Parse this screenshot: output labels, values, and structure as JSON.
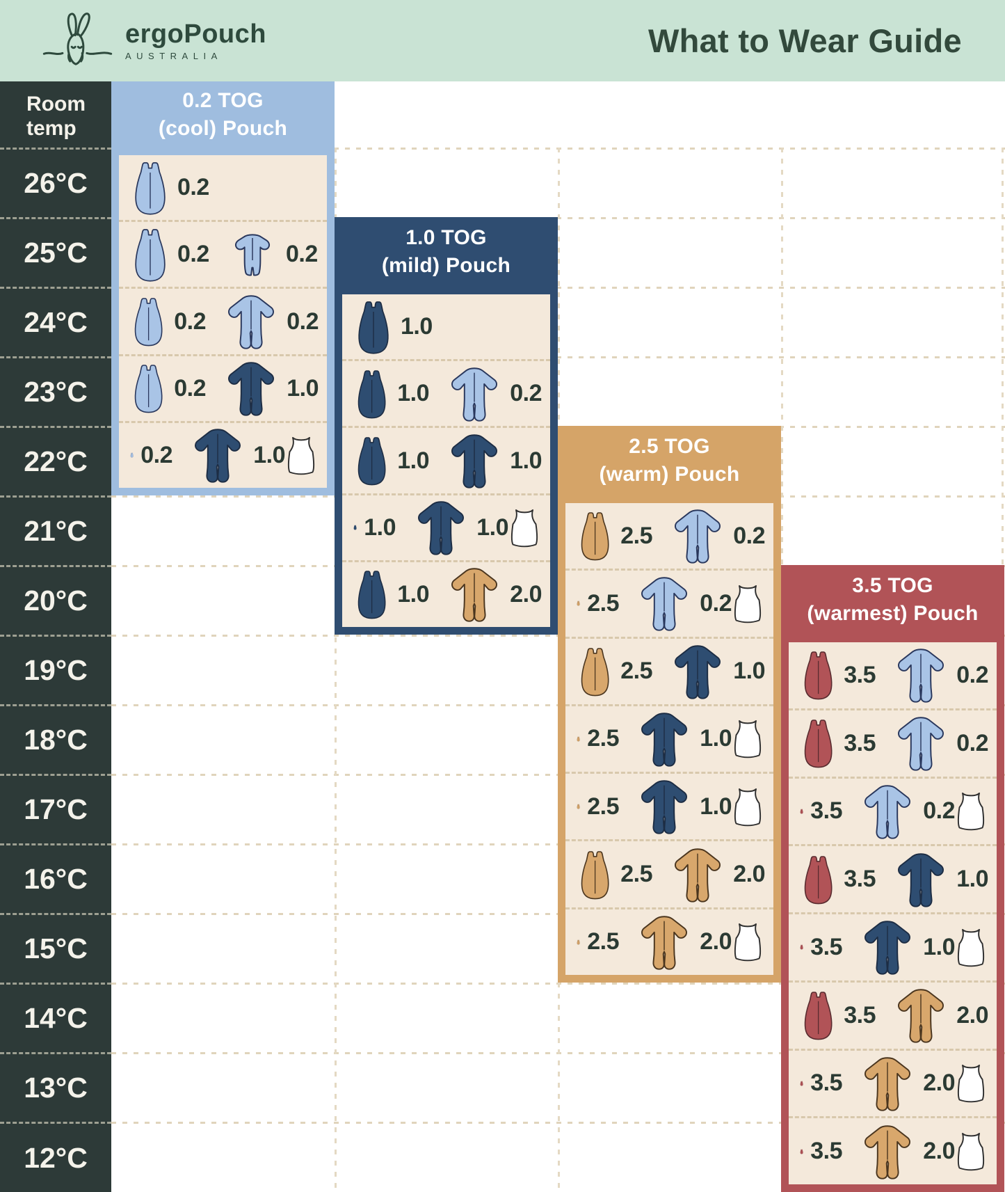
{
  "header": {
    "brand": "ergoPouch",
    "brand_sub": "AUSTRALIA",
    "title": "What to Wear Guide"
  },
  "temp_column": {
    "header": "Room\ntemp",
    "temps": [
      "26°C",
      "25°C",
      "24°C",
      "23°C",
      "22°C",
      "21°C",
      "20°C",
      "19°C",
      "18°C",
      "17°C",
      "16°C",
      "15°C",
      "14°C",
      "13°C",
      "12°C"
    ]
  },
  "colors": {
    "mint": "#c9e3d4",
    "dark_green": "#2e4a3d",
    "title_green": "#32493c",
    "slate": "#2d3a38",
    "cream": "#f4e9db",
    "label": "#2b3a33",
    "light_blue": "#9fbddf",
    "navy": "#2f4d71",
    "tan": "#d5a468",
    "red": "#b15357",
    "icon_light_blue": "#a9c4e6",
    "icon_navy": "#2e4d71",
    "icon_tan": "#d8a76c",
    "icon_red": "#b15357",
    "singlet_white": "#ffffff",
    "dash_cream": "#d8c8ac"
  },
  "columns": [
    {
      "id": "cool",
      "title": "0.2 TOG\n(cool) Pouch",
      "accent_key": "light_blue",
      "start_temp": "26°C",
      "rows": [
        {
          "temp": "26°C",
          "pouch": {
            "color": "light_blue",
            "label": "0.2"
          },
          "garments": [],
          "singlet": false
        },
        {
          "temp": "25°C",
          "pouch": {
            "color": "light_blue",
            "label": "0.2"
          },
          "garments": [
            {
              "icon": "romper",
              "color": "light_blue",
              "label": "0.2"
            }
          ],
          "singlet": false
        },
        {
          "temp": "24°C",
          "pouch": {
            "color": "light_blue",
            "label": "0.2"
          },
          "garments": [
            {
              "icon": "onesie",
              "color": "light_blue",
              "label": "0.2"
            }
          ],
          "singlet": false
        },
        {
          "temp": "23°C",
          "pouch": {
            "color": "light_blue",
            "label": "0.2"
          },
          "garments": [
            {
              "icon": "onesie",
              "color": "navy",
              "label": "1.0"
            }
          ],
          "singlet": false
        },
        {
          "temp": "22°C",
          "pouch": {
            "color": "light_blue",
            "label": "0.2"
          },
          "garments": [
            {
              "icon": "onesie",
              "color": "navy",
              "label": "1.0"
            }
          ],
          "singlet": true
        }
      ]
    },
    {
      "id": "mild",
      "title": "1.0 TOG\n(mild) Pouch",
      "accent_key": "navy",
      "start_temp": "24°C",
      "rows": [
        {
          "temp": "24°C",
          "pouch": {
            "color": "navy",
            "label": "1.0"
          },
          "garments": [],
          "singlet": false
        },
        {
          "temp": "23°C",
          "pouch": {
            "color": "navy",
            "label": "1.0"
          },
          "garments": [
            {
              "icon": "onesie",
              "color": "light_blue",
              "label": "0.2"
            }
          ],
          "singlet": false
        },
        {
          "temp": "22°C",
          "pouch": {
            "color": "navy",
            "label": "1.0"
          },
          "garments": [
            {
              "icon": "onesie",
              "color": "navy",
              "label": "1.0"
            }
          ],
          "singlet": false
        },
        {
          "temp": "21°C",
          "pouch": {
            "color": "navy",
            "label": "1.0"
          },
          "garments": [
            {
              "icon": "onesie",
              "color": "navy",
              "label": "1.0"
            }
          ],
          "singlet": true
        },
        {
          "temp": "20°C",
          "pouch": {
            "color": "navy",
            "label": "1.0"
          },
          "garments": [
            {
              "icon": "onesie",
              "color": "tan",
              "label": "2.0"
            }
          ],
          "singlet": false
        }
      ]
    },
    {
      "id": "warm",
      "title": "2.5 TOG\n(warm) Pouch",
      "accent_key": "tan",
      "start_temp": "21°C",
      "rows": [
        {
          "temp": "21°C",
          "pouch": {
            "color": "tan",
            "label": "2.5"
          },
          "garments": [
            {
              "icon": "onesie",
              "color": "light_blue",
              "label": "0.2"
            }
          ],
          "singlet": false
        },
        {
          "temp": "20°C",
          "pouch": {
            "color": "tan",
            "label": "2.5"
          },
          "garments": [
            {
              "icon": "onesie",
              "color": "light_blue",
              "label": "0.2"
            }
          ],
          "singlet": true
        },
        {
          "temp": "19°C",
          "pouch": {
            "color": "tan",
            "label": "2.5"
          },
          "garments": [
            {
              "icon": "onesie",
              "color": "navy",
              "label": "1.0"
            }
          ],
          "singlet": false
        },
        {
          "temp": "18°C",
          "pouch": {
            "color": "tan",
            "label": "2.5"
          },
          "garments": [
            {
              "icon": "onesie",
              "color": "navy",
              "label": "1.0"
            }
          ],
          "singlet": true
        },
        {
          "temp": "17°C",
          "pouch": {
            "color": "tan",
            "label": "2.5"
          },
          "garments": [
            {
              "icon": "onesie",
              "color": "navy",
              "label": "1.0"
            }
          ],
          "singlet": true
        },
        {
          "temp": "16°C",
          "pouch": {
            "color": "tan",
            "label": "2.5"
          },
          "garments": [
            {
              "icon": "onesie",
              "color": "tan",
              "label": "2.0"
            }
          ],
          "singlet": false
        },
        {
          "temp": "15°C",
          "pouch": {
            "color": "tan",
            "label": "2.5"
          },
          "garments": [
            {
              "icon": "onesie",
              "color": "tan",
              "label": "2.0"
            }
          ],
          "singlet": true
        }
      ]
    },
    {
      "id": "warmest",
      "title": "3.5 TOG\n(warmest) Pouch",
      "accent_key": "red",
      "start_temp": "19°C",
      "rows": [
        {
          "temp": "19°C",
          "pouch": {
            "color": "red",
            "label": "3.5"
          },
          "garments": [
            {
              "icon": "onesie",
              "color": "light_blue",
              "label": "0.2"
            }
          ],
          "singlet": false
        },
        {
          "temp": "18°C",
          "pouch": {
            "color": "red",
            "label": "3.5"
          },
          "garments": [
            {
              "icon": "onesie",
              "color": "light_blue",
              "label": "0.2"
            }
          ],
          "singlet": false
        },
        {
          "temp": "17°C",
          "pouch": {
            "color": "red",
            "label": "3.5"
          },
          "garments": [
            {
              "icon": "onesie",
              "color": "light_blue",
              "label": "0.2"
            }
          ],
          "singlet": true
        },
        {
          "temp": "16°C",
          "pouch": {
            "color": "red",
            "label": "3.5"
          },
          "garments": [
            {
              "icon": "onesie",
              "color": "navy",
              "label": "1.0"
            }
          ],
          "singlet": false
        },
        {
          "temp": "15°C",
          "pouch": {
            "color": "red",
            "label": "3.5"
          },
          "garments": [
            {
              "icon": "onesie",
              "color": "navy",
              "label": "1.0"
            }
          ],
          "singlet": true
        },
        {
          "temp": "14°C",
          "pouch": {
            "color": "red",
            "label": "3.5"
          },
          "garments": [
            {
              "icon": "onesie",
              "color": "tan",
              "label": "2.0"
            }
          ],
          "singlet": false
        },
        {
          "temp": "13°C",
          "pouch": {
            "color": "red",
            "label": "3.5"
          },
          "garments": [
            {
              "icon": "onesie",
              "color": "tan",
              "label": "2.0"
            }
          ],
          "singlet": true
        },
        {
          "temp": "12°C",
          "pouch": {
            "color": "red",
            "label": "3.5"
          },
          "garments": [
            {
              "icon": "onesie",
              "color": "tan",
              "label": "2.0"
            }
          ],
          "singlet": true
        }
      ]
    }
  ],
  "chart_data": {
    "type": "table",
    "title": "What to Wear Guide",
    "columns": [
      "Room temp",
      "0.2 TOG (cool) Pouch",
      "1.0 TOG (mild) Pouch",
      "2.5 TOG (warm) Pouch",
      "3.5 TOG (warmest) Pouch"
    ],
    "rows": [
      [
        "26°C",
        "0.2 pouch",
        "",
        "",
        ""
      ],
      [
        "25°C",
        "0.2 pouch + 0.2 romper",
        "",
        "",
        ""
      ],
      [
        "24°C",
        "0.2 pouch + 0.2 onesie",
        "1.0 pouch",
        "",
        ""
      ],
      [
        "23°C",
        "0.2 pouch + 1.0 onesie",
        "1.0 pouch + 0.2 onesie",
        "",
        ""
      ],
      [
        "22°C",
        "0.2 pouch + 1.0 onesie + singlet",
        "1.0 pouch + 1.0 onesie",
        "",
        ""
      ],
      [
        "21°C",
        "",
        "1.0 pouch + 1.0 onesie + singlet",
        "2.5 pouch + 0.2 onesie",
        ""
      ],
      [
        "20°C",
        "",
        "1.0 pouch + 2.0 onesie",
        "2.5 pouch + 0.2 onesie + singlet",
        ""
      ],
      [
        "19°C",
        "",
        "",
        "2.5 pouch + 1.0 onesie",
        "3.5 pouch + 0.2 onesie"
      ],
      [
        "18°C",
        "",
        "",
        "2.5 pouch + 1.0 onesie + singlet",
        "3.5 pouch + 0.2 onesie"
      ],
      [
        "17°C",
        "",
        "",
        "2.5 pouch + 1.0 onesie + singlet",
        "3.5 pouch + 0.2 onesie + singlet"
      ],
      [
        "16°C",
        "",
        "",
        "2.5 pouch + 2.0 onesie",
        "3.5 pouch + 1.0 onesie"
      ],
      [
        "15°C",
        "",
        "",
        "2.5 pouch + 2.0 onesie + singlet",
        "3.5 pouch + 1.0 onesie + singlet"
      ],
      [
        "14°C",
        "",
        "",
        "",
        "3.5 pouch + 2.0 onesie"
      ],
      [
        "13°C",
        "",
        "",
        "",
        "3.5 pouch + 2.0 onesie + singlet"
      ],
      [
        "12°C",
        "",
        "",
        "",
        "3.5 pouch + 2.0 onesie + singlet"
      ]
    ]
  }
}
